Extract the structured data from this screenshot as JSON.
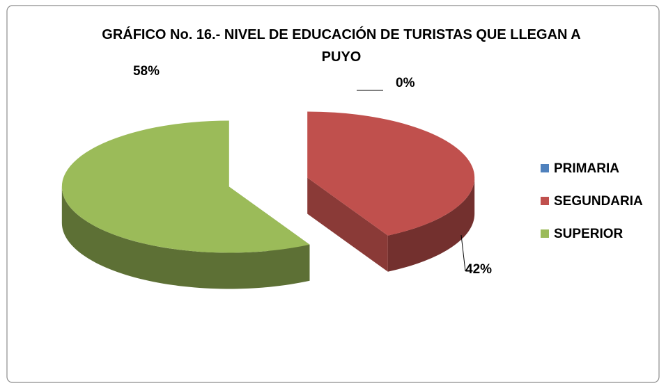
{
  "chart_data": {
    "type": "pie3d",
    "title": "GRÁFICO No. 16.- NIVEL DE EDUCACIÓN DE TURISTAS QUE LLEGAN A PUYO",
    "categories": [
      "PRIMARIA",
      "SEGUNDARIA",
      "SUPERIOR"
    ],
    "values": [
      0,
      42,
      58
    ],
    "value_labels": [
      "0%",
      "42%",
      "58%"
    ],
    "colors": [
      "#4f81bd",
      "#c0504d",
      "#9bbb59"
    ],
    "legend": "right"
  }
}
